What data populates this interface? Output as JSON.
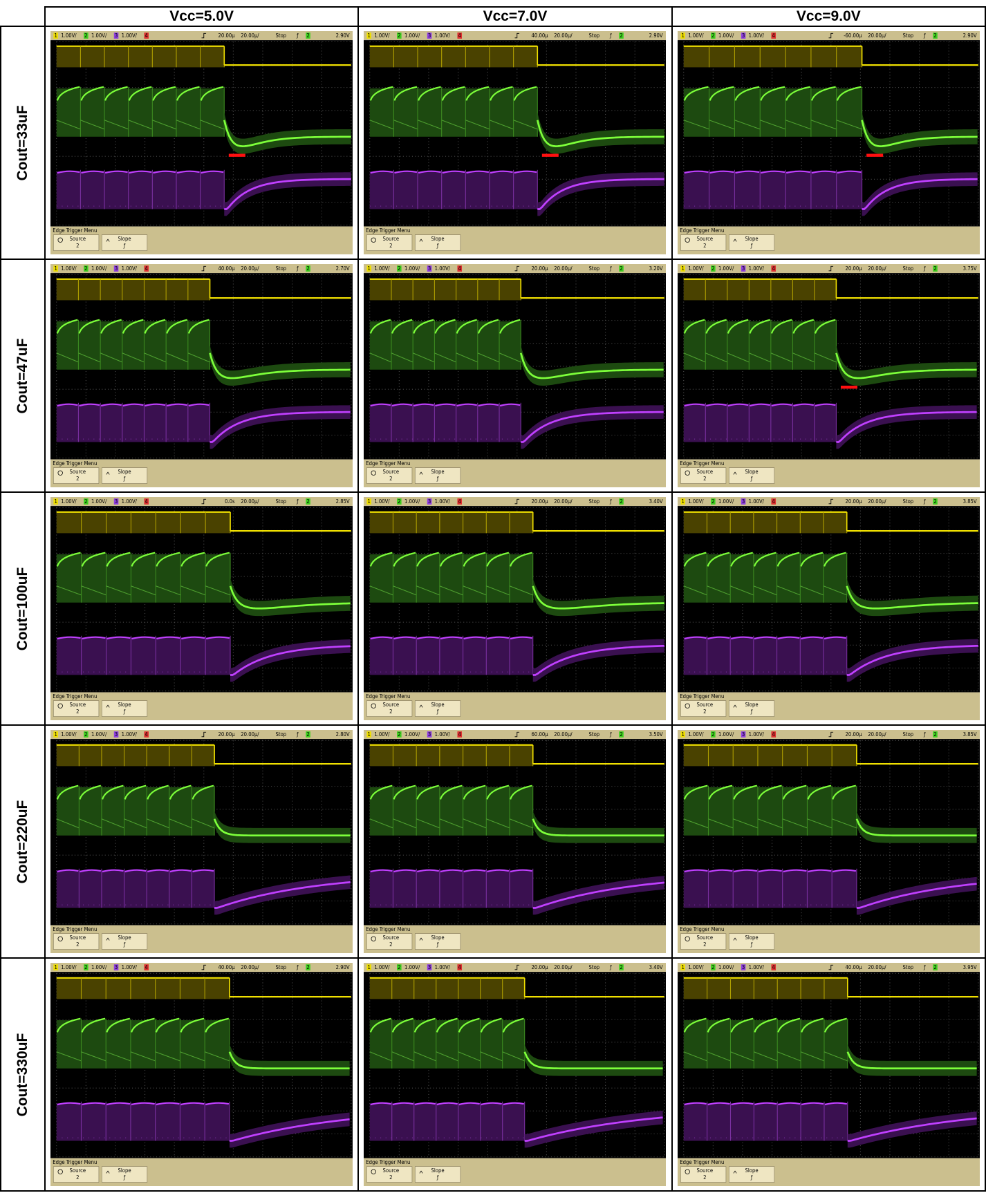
{
  "table": {
    "column_headers": [
      "Vcc=5.0V",
      "Vcc=7.0V",
      "Vcc=9.0V"
    ],
    "rows": [
      {
        "label": "Cout=33uF",
        "cells": [
          {
            "offset": "20.00µ",
            "trigger_level": "2.90V"
          },
          {
            "offset": "40.00µ",
            "trigger_level": "2.90V"
          },
          {
            "offset": "-60.00µ",
            "trigger_level": "2.90V"
          }
        ]
      },
      {
        "label": "Cout=47uF",
        "cells": [
          {
            "offset": "40.00µ",
            "trigger_level": "2.70V"
          },
          {
            "offset": "20.00µ",
            "trigger_level": "3.20V"
          },
          {
            "offset": "20.00µ",
            "trigger_level": "3.75V"
          }
        ]
      },
      {
        "label": "Cout=100uF",
        "cells": [
          {
            "offset": "0.0s",
            "trigger_level": "2.85V"
          },
          {
            "offset": "20.00µ",
            "trigger_level": "3.40V"
          },
          {
            "offset": "20.00µ",
            "trigger_level": "3.85V"
          }
        ]
      },
      {
        "label": "Cout=220uF",
        "cells": [
          {
            "offset": "20.00µ",
            "trigger_level": "2.80V"
          },
          {
            "offset": "60.00µ",
            "trigger_level": "3.50V"
          },
          {
            "offset": "20.00µ",
            "trigger_level": "3.85V"
          }
        ]
      },
      {
        "label": "Cout=330uF",
        "cells": [
          {
            "offset": "40.00µ",
            "trigger_level": "2.90V"
          },
          {
            "offset": "20.00µ",
            "trigger_level": "3.40V"
          },
          {
            "offset": "40.00µ",
            "trigger_level": "3.95V"
          }
        ]
      }
    ]
  },
  "scope_ui": {
    "channels": [
      "1",
      "2",
      "3",
      "4"
    ],
    "scale": "1.00V/",
    "timebase": "20.00µ/",
    "run_state": "Stop",
    "trigger_slope": "ƒ",
    "menu_title": "Edge Trigger Menu",
    "source_label": "Source",
    "slope_label": "Slope"
  }
}
